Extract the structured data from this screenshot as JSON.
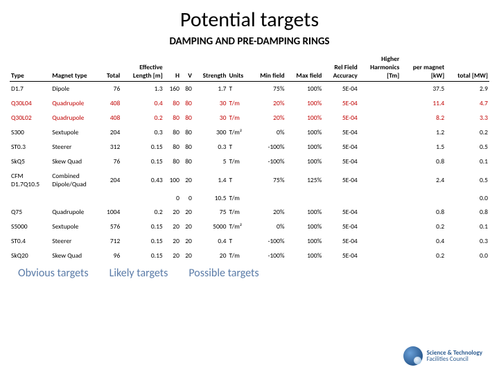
{
  "title": "Potential targets",
  "subtitle": "DAMPING AND PRE-DAMPING RINGS",
  "columns": [
    {
      "label": "Type",
      "align": "left"
    },
    {
      "label": "Magnet type",
      "align": "left"
    },
    {
      "label": "Total",
      "align": "right"
    },
    {
      "label": "Effective\nLength [m]",
      "align": "right"
    },
    {
      "label": "H",
      "align": "right"
    },
    {
      "label": "V",
      "align": "right"
    },
    {
      "label": "Strength",
      "align": "right"
    },
    {
      "label": "Units",
      "align": "left"
    },
    {
      "label": "Min field",
      "align": "right"
    },
    {
      "label": "Max field",
      "align": "right"
    },
    {
      "label": "Rel Field\nAccuracy",
      "align": "right"
    },
    {
      "label": "Higher\nHarmonics\n[Tm]",
      "align": "right"
    },
    {
      "label": "per magnet\n[kW]",
      "align": "right"
    },
    {
      "label": "total [MW]",
      "align": "right"
    }
  ],
  "rows": [
    {
      "red": false,
      "c": [
        "D1.7",
        "Dipole",
        "76",
        "1.3",
        "160",
        "80",
        "1.7",
        "T",
        "75%",
        "100%",
        "5E-04",
        "",
        "37.5",
        "2.9"
      ]
    },
    {
      "red": true,
      "c": [
        "Q30L04",
        "Quadrupole",
        "408",
        "0.4",
        "80",
        "80",
        "30",
        "T/m",
        "20%",
        "100%",
        "5E-04",
        "",
        "11.4",
        "4.7"
      ]
    },
    {
      "red": true,
      "c": [
        "Q30L02",
        "Quadrupole",
        "408",
        "0.2",
        "80",
        "80",
        "30",
        "T/m",
        "20%",
        "100%",
        "5E-04",
        "",
        "8.2",
        "3.3"
      ]
    },
    {
      "red": false,
      "c": [
        "S300",
        "Sextupole",
        "204",
        "0.3",
        "80",
        "80",
        "300",
        "T/m²",
        "0%",
        "100%",
        "5E-04",
        "",
        "1.2",
        "0.2"
      ]
    },
    {
      "red": false,
      "c": [
        "ST0.3",
        "Steerer",
        "312",
        "0.15",
        "80",
        "80",
        "0.3",
        "T",
        "-100%",
        "100%",
        "5E-04",
        "",
        "1.5",
        "0.5"
      ]
    },
    {
      "red": false,
      "c": [
        "SkQ5",
        "Skew Quad",
        "76",
        "0.15",
        "80",
        "80",
        "5",
        "T/m",
        "-100%",
        "100%",
        "5E-04",
        "",
        "0.8",
        "0.1"
      ]
    },
    {
      "red": false,
      "c": [
        "CFM\nD1.7Q10.5",
        "Combined\nDipole/Quad",
        "204",
        "0.43",
        "100",
        "20",
        "1.4",
        "T",
        "75%",
        "125%",
        "5E-04",
        "",
        "2.4",
        "0.5"
      ]
    },
    {
      "red": false,
      "spacer": true,
      "c": [
        "",
        "",
        "",
        "",
        "0",
        "0",
        "10.5",
        "T/m",
        "",
        "",
        "",
        "",
        "",
        "0.0"
      ]
    },
    {
      "red": false,
      "c": [
        "Q75",
        "Quadrupole",
        "1004",
        "0.2",
        "20",
        "20",
        "75",
        "T/m",
        "20%",
        "100%",
        "5E-04",
        "",
        "0.8",
        "0.8"
      ]
    },
    {
      "red": false,
      "c": [
        "S5000",
        "Sextupole",
        "576",
        "0.15",
        "20",
        "20",
        "5000",
        "T/m²",
        "0%",
        "100%",
        "5E-04",
        "",
        "0.2",
        "0.1"
      ]
    },
    {
      "red": false,
      "c": [
        "ST0.4",
        "Steerer",
        "712",
        "0.15",
        "20",
        "20",
        "0.4",
        "T",
        "-100%",
        "100%",
        "5E-04",
        "",
        "0.4",
        "0.3"
      ]
    },
    {
      "red": false,
      "c": [
        "SkQ20",
        "Skew Quad",
        "96",
        "0.15",
        "20",
        "20",
        "20",
        "T/m",
        "-100%",
        "100%",
        "5E-04",
        "",
        "0.2",
        "0.0"
      ]
    }
  ],
  "footer": {
    "obvious": "Obvious\ntargets",
    "likely": "Likely\ntargets",
    "possible": "Possible\ntargets"
  },
  "logo": {
    "line1": "Science & Technology",
    "line2": "Facilities Council"
  }
}
